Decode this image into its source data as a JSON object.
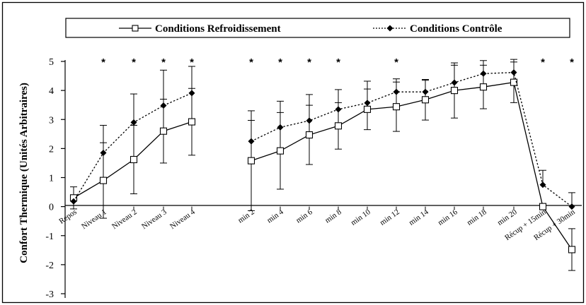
{
  "chart_data": {
    "type": "line",
    "ylabel": "Confort Thermique (Unités Arbitraires)",
    "ylim": [
      -3,
      5
    ],
    "yticks": [
      5,
      4,
      3,
      2,
      1,
      0,
      -1,
      -2,
      -3
    ],
    "legend_placement": "top",
    "categories": [
      "Repos",
      "Niveau 1",
      "Niveau 2",
      "Niveau 3",
      "Niveau 4",
      "min 2",
      "min 4",
      "min 6",
      "min 8",
      "min 10",
      "min 12",
      "min 14",
      "min 16",
      "min 18",
      "min 20",
      "Récup + 15min",
      "Récup + 30min"
    ],
    "significance": [
      false,
      true,
      true,
      true,
      true,
      true,
      true,
      true,
      true,
      false,
      true,
      false,
      false,
      false,
      false,
      true,
      true
    ],
    "significance_mark": "*",
    "series": [
      {
        "name": "Conditions Refroidissement",
        "marker": "square-open",
        "line_style": "solid",
        "color": "#000000",
        "segments": [
          [
            0,
            4
          ],
          [
            5,
            16
          ]
        ],
        "values": [
          0.3,
          0.9,
          1.62,
          2.6,
          2.92,
          1.58,
          1.92,
          2.47,
          2.78,
          3.35,
          3.44,
          3.68,
          4.0,
          4.12,
          4.28,
          0.0,
          -1.48
        ],
        "errors": [
          0.38,
          1.3,
          1.18,
          1.1,
          1.15,
          1.72,
          1.32,
          1.02,
          0.8,
          0.7,
          0.85,
          0.7,
          0.95,
          0.75,
          0.7,
          0.0,
          0.72
        ]
      },
      {
        "name": "Conditions Contrôle",
        "marker": "diamond-filled",
        "line_style": "dotted",
        "color": "#000000",
        "segments": [
          [
            0,
            4
          ],
          [
            5,
            16
          ]
        ],
        "values": [
          0.18,
          1.85,
          2.9,
          3.48,
          3.91,
          2.25,
          2.73,
          2.96,
          3.35,
          3.57,
          3.95,
          3.95,
          4.27,
          4.58,
          4.62,
          0.75,
          0.0
        ],
        "errors": [
          0.0,
          0.95,
          0.98,
          1.22,
          0.92,
          0.72,
          0.9,
          0.9,
          0.68,
          0.75,
          0.45,
          0.4,
          0.6,
          0.45,
          0.45,
          0.5,
          0.48
        ]
      }
    ]
  }
}
